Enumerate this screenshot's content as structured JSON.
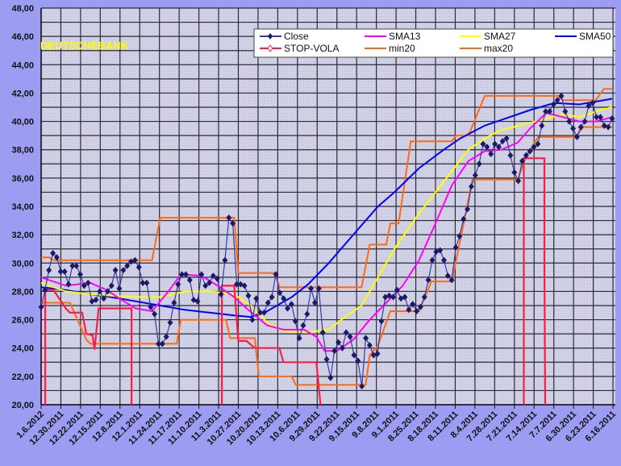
{
  "chart_data": {
    "type": "line",
    "title": "DEUTSCHEBANK",
    "ylim": [
      20,
      48
    ],
    "ytick_labels": [
      "20,00",
      "22,00",
      "24,00",
      "26,00",
      "28,00",
      "30,00",
      "32,00",
      "34,00",
      "36,00",
      "38,00",
      "40,00",
      "42,00",
      "44,00",
      "46,00",
      "48,00"
    ],
    "ytick_values": [
      20,
      22,
      24,
      26,
      28,
      30,
      32,
      34,
      36,
      38,
      40,
      42,
      44,
      46,
      48
    ],
    "x_tick_labels": [
      "1.6.2012",
      "12.30.2011",
      "12.22.2011",
      "12.15.2011",
      "12.8.2011",
      "12.1.2011",
      "11.24.2011",
      "11.17.2011",
      "11.10.2011",
      "11.3.2011",
      "10.27.2011",
      "10.20.2011",
      "10.13.2011",
      "10.6.2011",
      "9.29.2011",
      "9.22.2011",
      "9.15.2011",
      "9.8.2011",
      "9.1.2011",
      "8.25.2011",
      "8.18.2011",
      "8.11.2011",
      "8.4.2011",
      "7.28.2011",
      "7.21.2011",
      "7.14.2011",
      "7.7.2011",
      "6.30.2011",
      "6.23.2011",
      "6.16.2011"
    ],
    "x_unit": "trading-day index from left (0 = 1.6.2012)",
    "days_per_tick": 4.8,
    "xlim": [
      0,
      140
    ],
    "grid": true,
    "legend_position": "top-right",
    "series": [
      {
        "name": "Close",
        "color": "#1a1a66",
        "marker": "diamond",
        "values": [
          26.9,
          28.1,
          29.5,
          30.7,
          30.4,
          29.4,
          29.4,
          28.5,
          29.8,
          29.8,
          29.2,
          28.4,
          28.6,
          27.3,
          27.4,
          28.0,
          27.5,
          28.0,
          28.4,
          29.5,
          28.2,
          29.5,
          29.8,
          30.1,
          30.2,
          29.7,
          28.6,
          28.6,
          26.9,
          26.4,
          24.3,
          24.3,
          24.8,
          25.8,
          27.2,
          28.5,
          29.2,
          29.2,
          28.8,
          27.4,
          27.3,
          29.2,
          28.4,
          28.6,
          29.1,
          28.9,
          27.8,
          30.2,
          33.2,
          32.8,
          28.5,
          28.5,
          28.4,
          27.7,
          26.0,
          27.5,
          26.5,
          26.5,
          27.2,
          27.6,
          29.2,
          27.9,
          27.5,
          26.8,
          27.1,
          25.9,
          24.7,
          25.6,
          26.4,
          28.2,
          27.2,
          28.2,
          25.1,
          23.2,
          21.9,
          23.8,
          24.4,
          24.0,
          25.1,
          24.8,
          23.5,
          23.1,
          21.3,
          24.7,
          24.2,
          23.5,
          23.6,
          25.9,
          27.6,
          27.7,
          27.6,
          28.1,
          27.5,
          27.6,
          26.7,
          27.1,
          26.6,
          26.9,
          27.6,
          28.8,
          30.2,
          30.8,
          30.9,
          30.2,
          29.1,
          28.8,
          31.1,
          31.9,
          33.1,
          33.8,
          35.4,
          36.2,
          37.0,
          38.4,
          38.2,
          37.7,
          38.4,
          38.2,
          38.6,
          38.8,
          37.6,
          36.4,
          35.8,
          37.2,
          37.6,
          37.9,
          38.2,
          38.4,
          39.7,
          40.7,
          40.7,
          41.2,
          41.5,
          41.8,
          40.7,
          40.0,
          39.5,
          38.9,
          39.6,
          40.0,
          41.1,
          41.3,
          40.3,
          40.3,
          39.7,
          39.6,
          40.2
        ]
      },
      {
        "name": "SMA13",
        "color": "#ff00ff",
        "points": [
          [
            0,
            29.0
          ],
          [
            6,
            28.4
          ],
          [
            12,
            28.6
          ],
          [
            16,
            28.1
          ],
          [
            19,
            27.5
          ],
          [
            23,
            26.8
          ],
          [
            27,
            26.6
          ],
          [
            31,
            28.0
          ],
          [
            34,
            29.2
          ],
          [
            39,
            29.1
          ],
          [
            43,
            28.4
          ],
          [
            47,
            27.6
          ],
          [
            50,
            26.8
          ],
          [
            55,
            25.6
          ],
          [
            59,
            25.3
          ],
          [
            64,
            25.3
          ],
          [
            67,
            24.8
          ],
          [
            69,
            23.8
          ],
          [
            72,
            23.8
          ],
          [
            76,
            24.6
          ],
          [
            80,
            26.0
          ],
          [
            84,
            27.2
          ],
          [
            88,
            28.4
          ],
          [
            92,
            30.2
          ],
          [
            96,
            32.8
          ],
          [
            100,
            35.5
          ],
          [
            104,
            37.2
          ],
          [
            108,
            37.9
          ],
          [
            112,
            38.0
          ],
          [
            116,
            38.5
          ],
          [
            119,
            39.5
          ],
          [
            123,
            40.6
          ],
          [
            127,
            40.3
          ],
          [
            131,
            40.0
          ],
          [
            135,
            40.0
          ],
          [
            139,
            40.3
          ]
        ]
      },
      {
        "name": "SMA27",
        "color": "#ffff00",
        "points": [
          [
            0,
            28.6
          ],
          [
            6,
            28.0
          ],
          [
            12,
            27.8
          ],
          [
            17,
            27.7
          ],
          [
            23,
            27.6
          ],
          [
            29,
            27.6
          ],
          [
            35,
            28.0
          ],
          [
            41,
            28.0
          ],
          [
            47,
            27.8
          ],
          [
            51,
            27.0
          ],
          [
            55,
            25.8
          ],
          [
            59,
            25.2
          ],
          [
            64,
            25.1
          ],
          [
            70,
            25.3
          ],
          [
            74,
            26.2
          ],
          [
            78,
            27.0
          ],
          [
            82,
            29.0
          ],
          [
            86,
            31.0
          ],
          [
            92,
            33.5
          ],
          [
            96,
            35.0
          ],
          [
            100,
            36.5
          ],
          [
            104,
            38.0
          ],
          [
            108,
            38.8
          ],
          [
            112,
            39.4
          ],
          [
            115,
            39.6
          ],
          [
            119,
            39.9
          ],
          [
            123,
            40.2
          ],
          [
            127,
            40.5
          ],
          [
            131,
            40.3
          ],
          [
            135,
            40.7
          ],
          [
            139,
            41.0
          ]
        ]
      },
      {
        "name": "SMA50",
        "color": "#0000ff",
        "points": [
          [
            0,
            28.3
          ],
          [
            6,
            28.1
          ],
          [
            12,
            27.8
          ],
          [
            17,
            27.6
          ],
          [
            23,
            27.3
          ],
          [
            29,
            27.0
          ],
          [
            35,
            26.7
          ],
          [
            41,
            26.5
          ],
          [
            47,
            26.3
          ],
          [
            51,
            26.2
          ],
          [
            55,
            26.6
          ],
          [
            61,
            27.6
          ],
          [
            65,
            28.5
          ],
          [
            70,
            30.0
          ],
          [
            76,
            32.0
          ],
          [
            82,
            34.0
          ],
          [
            86,
            35.0
          ],
          [
            92,
            36.7
          ],
          [
            98,
            38.0
          ],
          [
            102,
            38.8
          ],
          [
            108,
            39.7
          ],
          [
            113,
            40.2
          ],
          [
            119,
            40.8
          ],
          [
            125,
            41.3
          ],
          [
            131,
            41.2
          ],
          [
            135,
            41.4
          ],
          [
            139,
            41.6
          ]
        ]
      },
      {
        "name": "STOP-VOLA",
        "color": "#ff1a4a",
        "segments": [
          [
            [
              1,
              20
            ],
            [
              1,
              28.1
            ],
            [
              3,
              28.1
            ],
            [
              6,
              26.8
            ],
            [
              7,
              26.5
            ],
            [
              10,
              26.5
            ],
            [
              11,
              25.0
            ],
            [
              12.5,
              24.9
            ],
            [
              13,
              23.9
            ],
            [
              14,
              26.8
            ],
            [
              22,
              26.8
            ],
            [
              22,
              20
            ]
          ],
          [
            [
              44,
              20
            ],
            [
              44,
              28.4
            ],
            [
              47,
              28.4
            ],
            [
              48,
              24.5
            ],
            [
              50,
              24.5
            ],
            [
              52,
              24.0
            ],
            [
              58,
              24.0
            ],
            [
              59,
              23.0
            ],
            [
              67,
              23.0
            ],
            [
              68,
              20
            ]
          ],
          [
            [
              117.5,
              20
            ],
            [
              117.5,
              37.4
            ],
            [
              122.5,
              37.4
            ],
            [
              122.5,
              29.9
            ],
            [
              122.7,
              20
            ]
          ]
        ]
      },
      {
        "name": "min20",
        "color": "#ff6a10",
        "points": [
          [
            0,
            27.2
          ],
          [
            7,
            27.2
          ],
          [
            11,
            24.6
          ],
          [
            12,
            24.3
          ],
          [
            33,
            24.3
          ],
          [
            34,
            26.0
          ],
          [
            45,
            26.0
          ],
          [
            46,
            24.7
          ],
          [
            52,
            24.7
          ],
          [
            53,
            22.0
          ],
          [
            61,
            22.0
          ],
          [
            62,
            21.4
          ],
          [
            79,
            21.4
          ],
          [
            80,
            23.5
          ],
          [
            82,
            24.2
          ],
          [
            85,
            26.6
          ],
          [
            92,
            26.6
          ],
          [
            95,
            28.7
          ],
          [
            100,
            28.7
          ],
          [
            105,
            35.9
          ],
          [
            116,
            35.9
          ],
          [
            118,
            37.5
          ],
          [
            121,
            38.9
          ],
          [
            130,
            38.9
          ],
          [
            132,
            39.6
          ],
          [
            139,
            39.6
          ]
        ]
      },
      {
        "name": "max20",
        "color": "#ff6a10",
        "points": [
          [
            0,
            30.4
          ],
          [
            2,
            30.4
          ],
          [
            3,
            30.2
          ],
          [
            27,
            30.2
          ],
          [
            29,
            33.2
          ],
          [
            47,
            33.2
          ],
          [
            48,
            29.3
          ],
          [
            57,
            29.3
          ],
          [
            58,
            28.3
          ],
          [
            78,
            28.3
          ],
          [
            80,
            31.3
          ],
          [
            84,
            31.3
          ],
          [
            85,
            32.8
          ],
          [
            87,
            32.8
          ],
          [
            90,
            38.6
          ],
          [
            100,
            38.6
          ],
          [
            101,
            39.0
          ],
          [
            104,
            39.0
          ],
          [
            108,
            41.8
          ],
          [
            126,
            41.8
          ],
          [
            127,
            41.5
          ],
          [
            135,
            41.5
          ],
          [
            137,
            42.3
          ],
          [
            139,
            42.3
          ]
        ]
      }
    ]
  }
}
